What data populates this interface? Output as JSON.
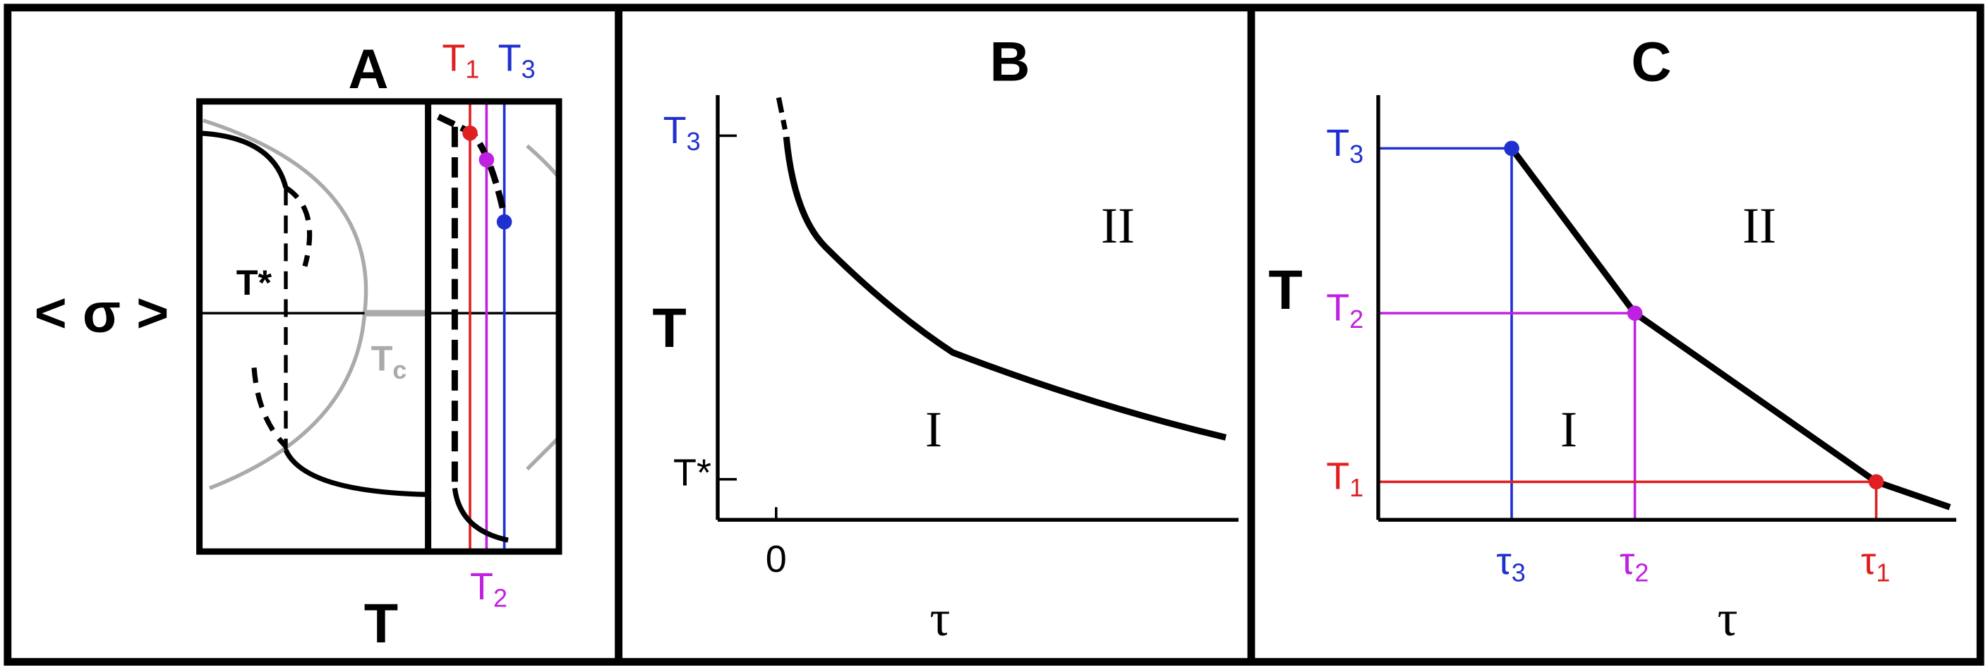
{
  "panel_a": {
    "label": "A",
    "y_axis": "< σ >",
    "x_axis": "T",
    "t_star": "T*",
    "tc": {
      "base": "T",
      "sub": "c"
    },
    "t1": {
      "base": "T",
      "sub": "1"
    },
    "t2": {
      "base": "T",
      "sub": "2"
    },
    "t3": {
      "base": "T",
      "sub": "3"
    }
  },
  "panel_b": {
    "label": "B",
    "y_axis": "T",
    "x_axis": "τ",
    "x_tick": "0",
    "t3": {
      "base": "T",
      "sub": "3"
    },
    "t_star": "T*",
    "region_1": "I",
    "region_2": "II"
  },
  "panel_c": {
    "label": "C",
    "y_axis": "T",
    "x_axis": "τ",
    "t3": {
      "base": "T",
      "sub": "3"
    },
    "t2": {
      "base": "T",
      "sub": "2"
    },
    "t1": {
      "base": "T",
      "sub": "1"
    },
    "tau3": {
      "base": "τ",
      "sub": "3"
    },
    "tau2": {
      "base": "τ",
      "sub": "2"
    },
    "tau1": {
      "base": "τ",
      "sub": "1"
    },
    "region_1": "I",
    "region_2": "II"
  }
}
